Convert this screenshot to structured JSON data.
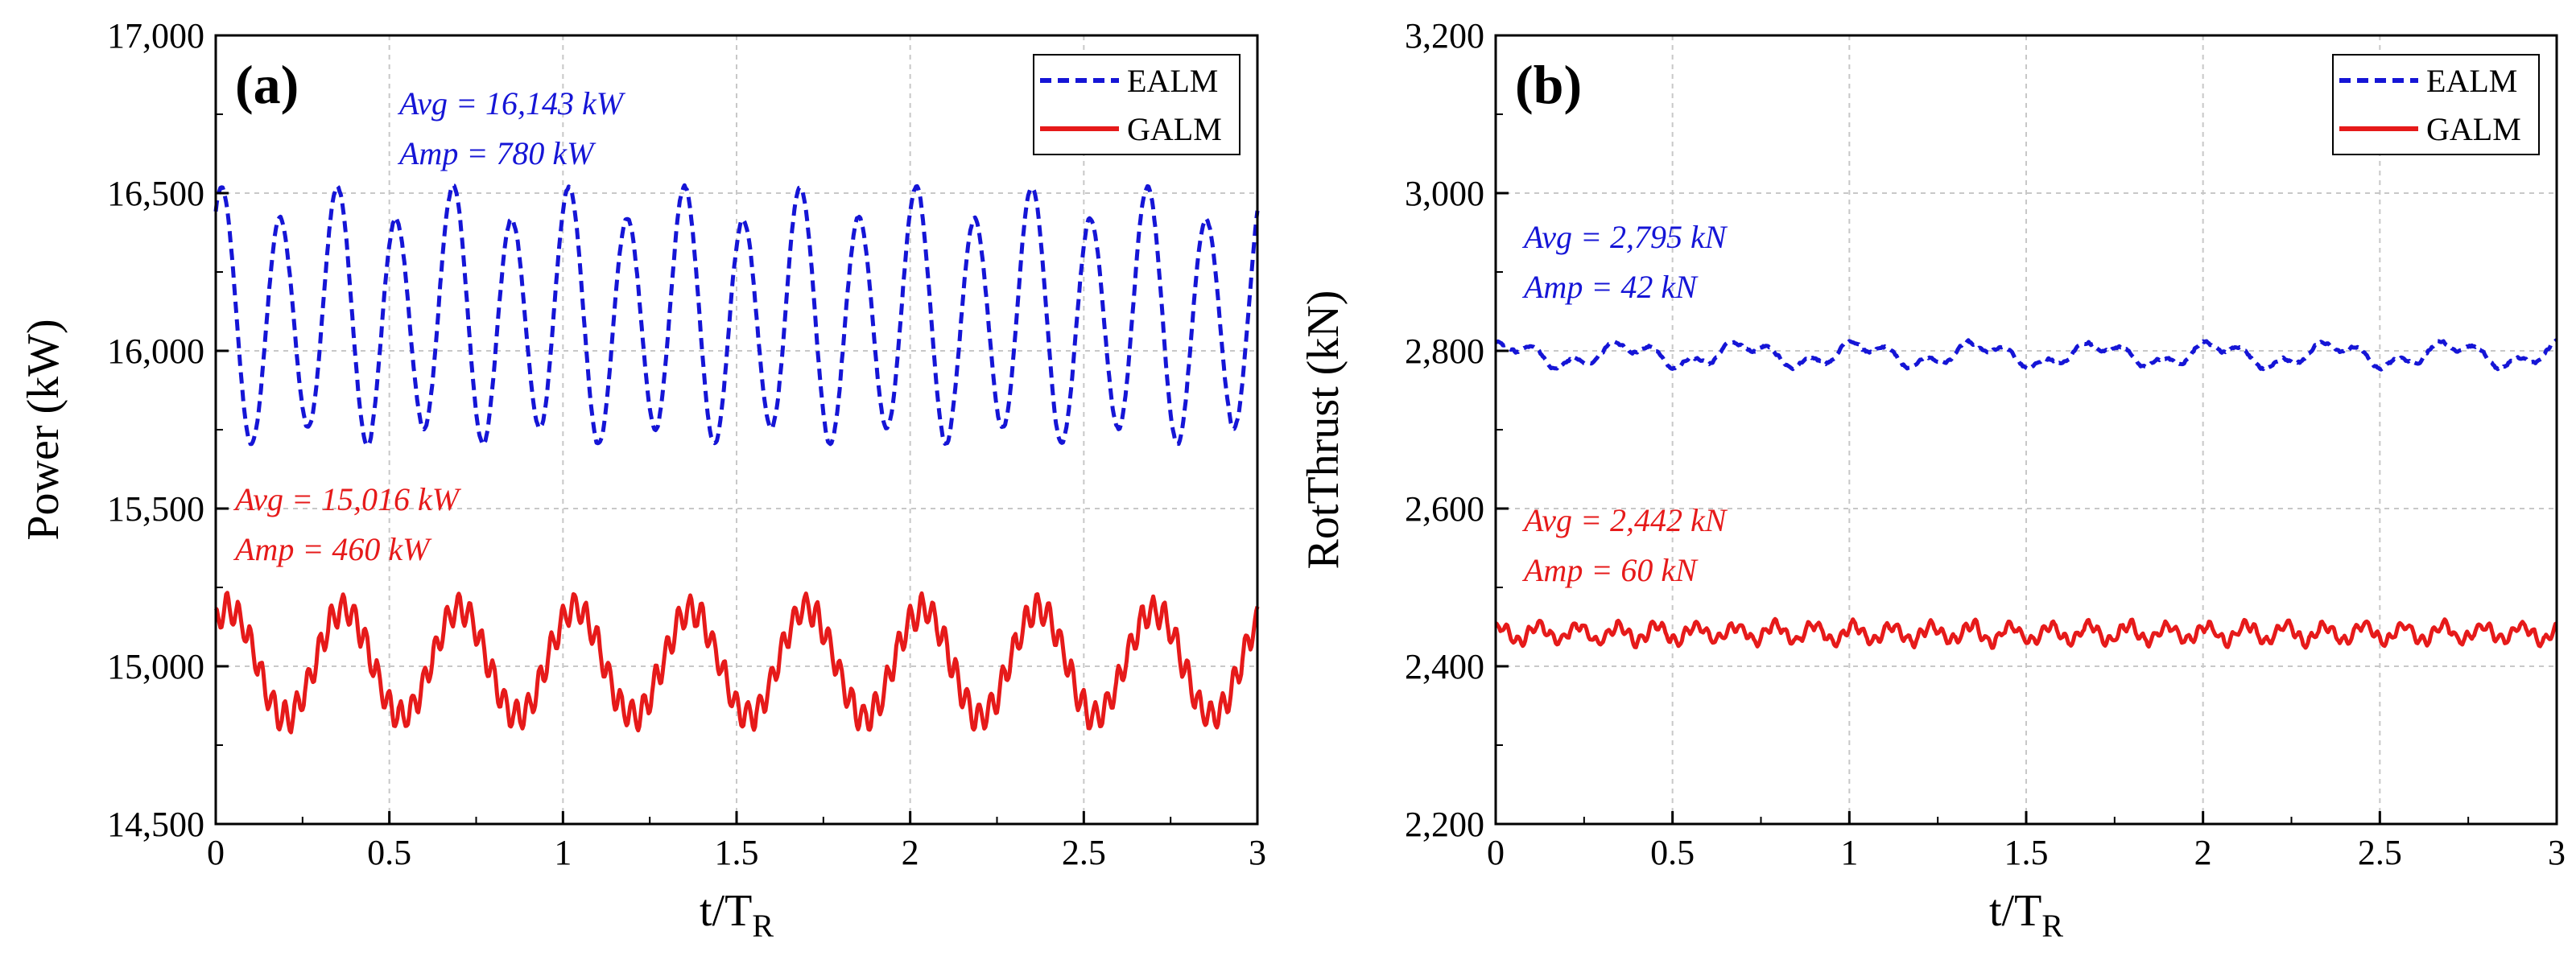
{
  "chart_data": [
    {
      "type": "line",
      "panel_label": "(a)",
      "xlabel_main": "t/T",
      "xlabel_sub": "R",
      "ylabel": "Power (kW)",
      "xlim": [
        0,
        3
      ],
      "ylim": [
        14500,
        17000
      ],
      "xticks": [
        0,
        0.5,
        1,
        1.5,
        2,
        2.5,
        3
      ],
      "xtick_labels": [
        "0",
        "0.5",
        "1",
        "1.5",
        "2",
        "2.5",
        "3"
      ],
      "yticks": [
        14500,
        15000,
        15500,
        16000,
        16500,
        17000
      ],
      "ytick_labels": [
        "14,500",
        "15,000",
        "15,500",
        "16,000",
        "16,500",
        "17,000"
      ],
      "grid": true,
      "legend_position": "top-right",
      "series": [
        {
          "name": "EALM",
          "color": "#1515d6",
          "style": "dashed",
          "model": {
            "mean": 16100,
            "amp": 370,
            "cycles": 18,
            "amp2": 55,
            "cycles2": 9,
            "noise": 12
          },
          "annotations": [
            "Avg = 16,143 kW",
            "Amp = 780 kW"
          ]
        },
        {
          "name": "GALM",
          "color": "#e61a1a",
          "style": "solid",
          "model": {
            "mean": 15010,
            "amp": 170,
            "cycles": 9,
            "amp2": 45,
            "cycles2": 90,
            "noise": 18
          },
          "annotations": [
            "Avg = 15,016 kW",
            "Amp = 460 kW"
          ]
        }
      ]
    },
    {
      "type": "line",
      "panel_label": "(b)",
      "xlabel_main": "t/T",
      "xlabel_sub": "R",
      "ylabel": "RotThrust (kN)",
      "xlim": [
        0,
        3
      ],
      "ylim": [
        2200,
        3200
      ],
      "xticks": [
        0,
        0.5,
        1,
        1.5,
        2,
        2.5,
        3
      ],
      "xtick_labels": [
        "0",
        "0.5",
        "1",
        "1.5",
        "2",
        "2.5",
        "3"
      ],
      "yticks": [
        2200,
        2400,
        2600,
        2800,
        3000,
        3200
      ],
      "ytick_labels": [
        "2,200",
        "2,400",
        "2,600",
        "2,800",
        "3,000",
        "3,200"
      ],
      "grid": true,
      "legend_position": "top-right",
      "series": [
        {
          "name": "EALM",
          "color": "#1515d6",
          "style": "dashed",
          "model": {
            "mean": 2795,
            "amp": 12,
            "cycles": 9,
            "amp2": 7,
            "cycles2": 27,
            "noise": 4
          },
          "annotations": [
            "Avg = 2,795 kN",
            "Amp = 42 kN"
          ]
        },
        {
          "name": "GALM",
          "color": "#e61a1a",
          "style": "solid",
          "model": {
            "mean": 2442,
            "amp": 10,
            "cycles": 27,
            "amp2": 6,
            "cycles2": 95,
            "noise": 5
          },
          "annotations": [
            "Avg = 2,442 kN",
            "Amp = 60 kN"
          ]
        }
      ]
    }
  ]
}
